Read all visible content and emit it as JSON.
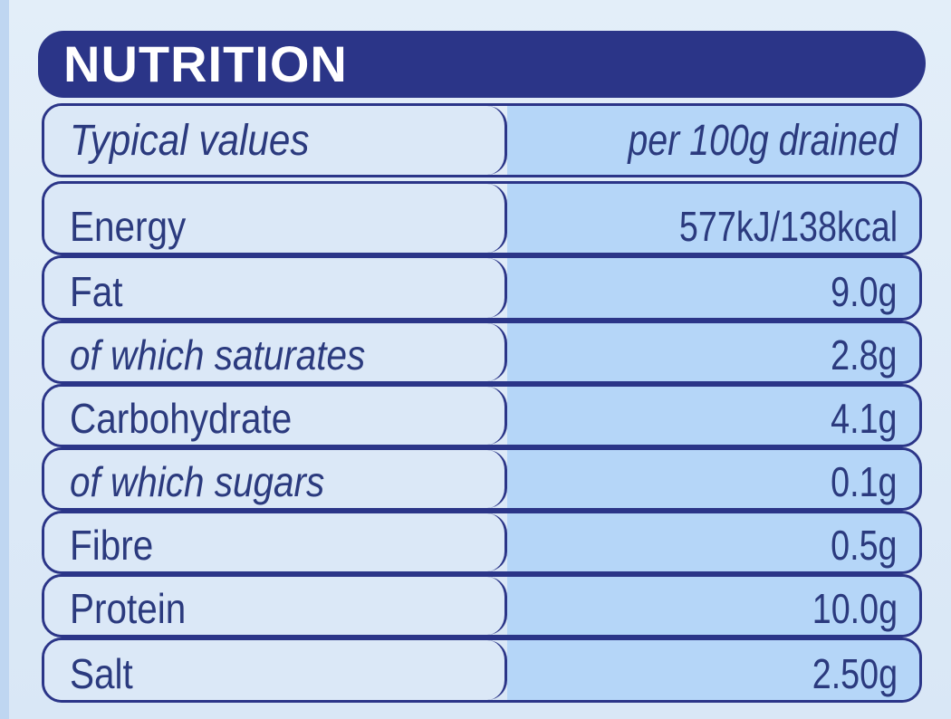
{
  "header": {
    "title": "NUTRITION"
  },
  "table": {
    "column_label": "Typical values",
    "column_value": "per 100g drained",
    "rows": [
      {
        "label": "Energy",
        "value": "577kJ/138kcal",
        "italic": false
      },
      {
        "label": "Fat",
        "value": "9.0g",
        "italic": false
      },
      {
        "label": "of which saturates",
        "value": "2.8g",
        "italic": true
      },
      {
        "label": "Carbohydrate",
        "value": "4.1g",
        "italic": false
      },
      {
        "label": "of which sugars",
        "value": "0.1g",
        "italic": true
      },
      {
        "label": "Fibre",
        "value": "0.5g",
        "italic": false
      },
      {
        "label": "Protein",
        "value": "10.0g",
        "italic": false
      },
      {
        "label": "Salt",
        "value": "2.50g",
        "italic": false
      }
    ]
  },
  "colors": {
    "navy": "#2b3588",
    "text": "#2b3a7e",
    "label_cell": "#dbe8f7",
    "value_cell": "#b5d6f8"
  }
}
